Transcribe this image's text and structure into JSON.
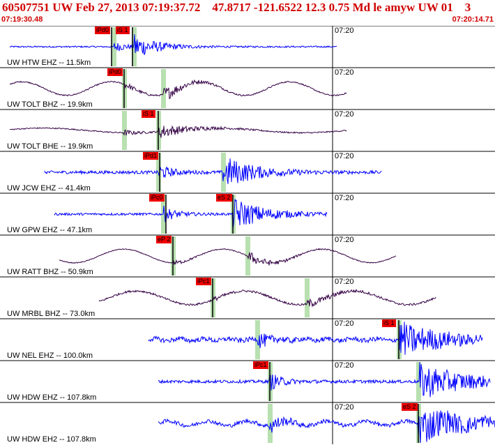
{
  "header": {
    "title": "60507751 UW Feb 27, 2013 07:19:37.72    47.8717 -121.6522 12.3 0.75 Md le amyw UW 01    3",
    "start_time": "07:19:30.48",
    "end_time": "07:20:14.71"
  },
  "minute_mark": "07:20",
  "colors": {
    "header_text": "#d00000",
    "trace_blue": "#0000ff",
    "trace_dark": "#330044",
    "pick_label_bg": "#ee0000",
    "pick_line": "#ff0000",
    "window_band": "#b8e0b0",
    "grid": "#000000"
  },
  "traces": [
    {
      "label": "UW HTW EHZ -- 11.5km",
      "color": "blue",
      "style": "hf",
      "start": 0.02,
      "end": 0.68,
      "p": 0.23,
      "s": 0.27,
      "coda": 0.35,
      "amp": 0.6,
      "noise": 0.04,
      "picks": [
        {
          "label": "iPd0",
          "at": 0.226
        },
        {
          "label": "iS 1",
          "at": 0.268
        }
      ]
    },
    {
      "label": "UW TOLT BHZ -- 19.9km",
      "color": "dark",
      "style": "lp",
      "start": 0.02,
      "end": 0.7,
      "p": 0.25,
      "s": 0.33,
      "coda": 0.4,
      "amp": 0.38,
      "noise": 0.03,
      "lp_amp": 0.35,
      "lp_period": 0.18,
      "picks": [
        {
          "label": "iPd0",
          "at": 0.25
        }
      ]
    },
    {
      "label": "UW TOLT BHE -- 19.9km",
      "color": "dark",
      "style": "lp",
      "start": 0.02,
      "end": 0.7,
      "p": 0.25,
      "s": 0.32,
      "coda": 0.42,
      "amp": 0.35,
      "noise": 0.03,
      "lp_amp": 0.12,
      "lp_period": 0.35,
      "picks": [
        {
          "label": "iS 1",
          "at": 0.32
        }
      ]
    },
    {
      "label": "UW JCW EHZ -- 41.4km",
      "color": "blue",
      "style": "hf",
      "start": 0.09,
      "end": 0.77,
      "p": 0.32,
      "s": 0.45,
      "coda": 0.55,
      "amp": 0.85,
      "noise": 0.08,
      "picks": [
        {
          "label": "iPd1",
          "at": 0.322
        }
      ]
    },
    {
      "label": "UW GPW EHZ -- 47.1km",
      "color": "blue",
      "style": "hf",
      "start": 0.11,
      "end": 0.66,
      "p": 0.33,
      "s": 0.47,
      "coda": 0.57,
      "amp": 0.85,
      "noise": 0.06,
      "picks": [
        {
          "label": "iPc0",
          "at": 0.335
        },
        {
          "label": "eS 2",
          "at": 0.47
        }
      ]
    },
    {
      "label": "UW RATT BHZ -- 50.9km",
      "color": "dark",
      "style": "lp",
      "start": 0.12,
      "end": 0.8,
      "p": 0.35,
      "s": 0.5,
      "coda": 0.58,
      "amp": 0.3,
      "noise": 0.02,
      "lp_amp": 0.35,
      "lp_period": 0.2,
      "picks": [
        {
          "label": "eP 2",
          "at": 0.35
        }
      ]
    },
    {
      "label": "UW MRBL BHZ -- 73.0km",
      "color": "dark",
      "style": "lp",
      "start": 0.2,
      "end": 0.88,
      "p": 0.43,
      "s": 0.62,
      "coda": 0.7,
      "amp": 0.2,
      "noise": 0.05,
      "lp_amp": 0.35,
      "lp_period": 0.22,
      "picks": [
        {
          "label": "iPc1",
          "at": 0.43
        }
      ]
    },
    {
      "label": "UW NEL EHZ -- 100.0km",
      "color": "blue",
      "style": "hf",
      "start": 0.3,
      "end": 0.975,
      "p": 0.52,
      "s": 0.805,
      "coda": 0.95,
      "amp": 0.9,
      "noise": 0.12,
      "lp_amp": 0.05,
      "lp_period": 0.05,
      "picks": [
        {
          "label": "iS 1",
          "at": 0.805
        }
      ]
    },
    {
      "label": "UW HDW EHZ -- 107.8km",
      "color": "blue",
      "style": "hf",
      "start": 0.32,
      "end": 0.99,
      "p": 0.545,
      "s": 0.845,
      "coda": 1.0,
      "amp": 0.95,
      "noise": 0.08,
      "picks": [
        {
          "label": "iPc1",
          "at": 0.545
        }
      ]
    },
    {
      "label": "UW HDW EH2 -- 107.8km",
      "color": "blue",
      "style": "hf",
      "start": 0.32,
      "end": 1.0,
      "p": 0.545,
      "s": 0.845,
      "coda": 1.0,
      "amp": 0.95,
      "noise": 0.1,
      "lp_amp": 0.12,
      "lp_period": 0.08,
      "picks": [
        {
          "label": "eS 2",
          "at": 0.845
        }
      ]
    }
  ]
}
